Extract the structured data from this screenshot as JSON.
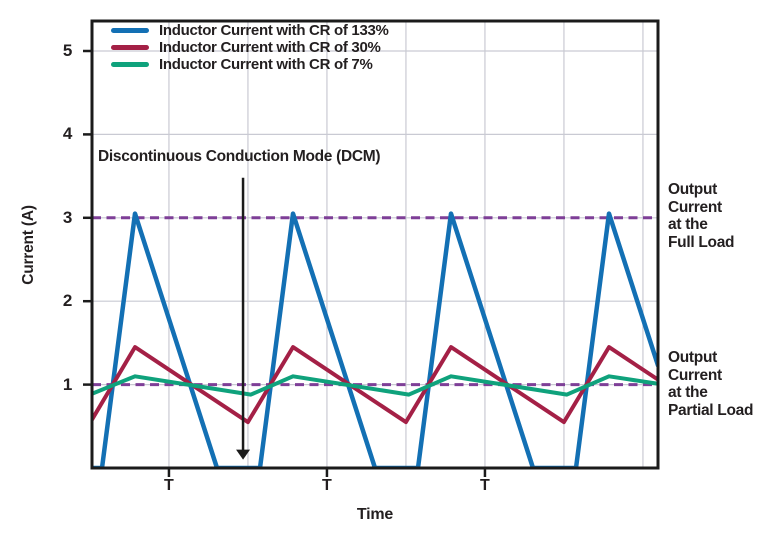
{
  "figure": {
    "background": "#ffffff",
    "text_color": "#231f20",
    "axis_color": "#1b1b1b",
    "grid_color": "#c9cad3"
  },
  "legend": {
    "position": "top-left-inside",
    "items": [
      {
        "label": "Inductor Current with CR of 133%",
        "color": "#1370b4"
      },
      {
        "label": "Inductor Current with CR of 30%",
        "color": "#a42046"
      },
      {
        "label": "Inductor Current with CR of 7%",
        "color": "#0fa27c"
      }
    ]
  },
  "labels": {
    "full_load": "Output\nCurrent\nat the\nFull Load",
    "partial_load": "Output\nCurrent\nat the\nPartial Load"
  },
  "chart_data": {
    "type": "line",
    "title": "",
    "xlabel": "Time",
    "ylabel": "Current (A)",
    "x_unit": "switching periods T",
    "ylim": [
      0,
      5.37
    ],
    "xlim_T": [
      0,
      3.58
    ],
    "grid": true,
    "yticks": [
      1,
      2,
      3,
      4,
      5
    ],
    "xticks": {
      "positions_T": [
        0.487,
        1.487,
        2.487
      ],
      "label": "T"
    },
    "gridlines": {
      "vertical_T": [
        0.487,
        0.987,
        1.487,
        1.987,
        2.487,
        2.987,
        3.487
      ],
      "horizontal_A": [
        1,
        2,
        3,
        4,
        5
      ]
    },
    "series": [
      {
        "name": "Inductor Current with CR of 133%",
        "color": "#1370b4",
        "width": 4.5,
        "points_T_A": [
          [
            0,
            0
          ],
          [
            0.063,
            0
          ],
          [
            0.272,
            3.05
          ],
          [
            0.791,
            0
          ],
          [
            1.063,
            0
          ],
          [
            1.272,
            3.05
          ],
          [
            1.791,
            0
          ],
          [
            2.063,
            0
          ],
          [
            2.272,
            3.05
          ],
          [
            2.791,
            0
          ],
          [
            3.063,
            0
          ],
          [
            3.272,
            3.05
          ],
          [
            3.582,
            1.23
          ]
        ]
      },
      {
        "name": "Inductor Current with CR of 30%",
        "color": "#a42046",
        "width": 4,
        "points_T_A": [
          [
            0,
            0.58
          ],
          [
            0.272,
            1.45
          ],
          [
            0.987,
            0.55
          ],
          [
            1.272,
            1.45
          ],
          [
            1.987,
            0.55
          ],
          [
            2.272,
            1.45
          ],
          [
            2.987,
            0.55
          ],
          [
            3.272,
            1.45
          ],
          [
            3.582,
            1.06
          ]
        ]
      },
      {
        "name": "Inductor Current with CR of 7%",
        "color": "#0fa27c",
        "width": 4,
        "points_T_A": [
          [
            0,
            0.89
          ],
          [
            0.272,
            1.1
          ],
          [
            1.006,
            0.88
          ],
          [
            1.272,
            1.1
          ],
          [
            2.006,
            0.88
          ],
          [
            2.272,
            1.1
          ],
          [
            3.006,
            0.88
          ],
          [
            3.272,
            1.1
          ],
          [
            3.582,
            1.01
          ]
        ]
      }
    ],
    "reference_lines": [
      {
        "value_A": 3,
        "label": "Output Current at the Full Load",
        "color": "#7e3f97",
        "style": "dashed"
      },
      {
        "value_A": 1,
        "label": "Output Current at the Partial Load",
        "color": "#7e3f97",
        "style": "dashed"
      }
    ],
    "annotation_arrow": {
      "text": "Discontinuous Conduction Mode (DCM)",
      "x_T": 0.956,
      "y_from_A": 3.48,
      "y_to_A": 0.1
    }
  }
}
